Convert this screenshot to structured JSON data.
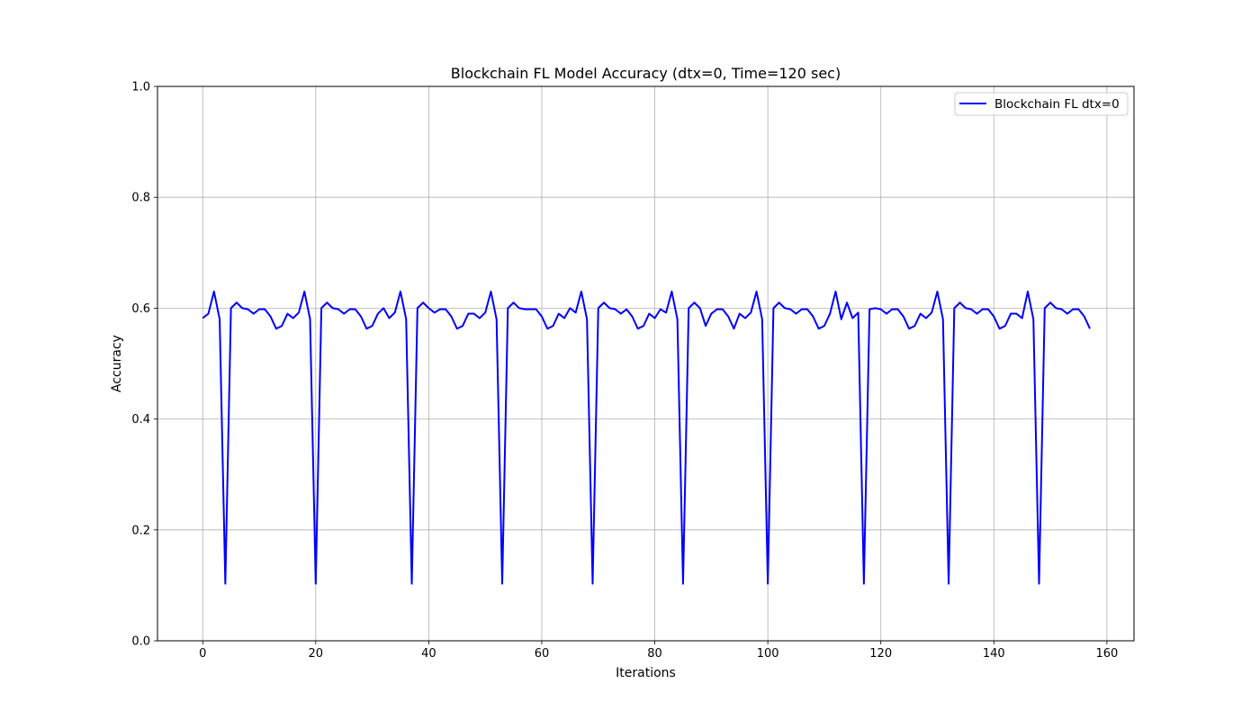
{
  "chart_data": {
    "type": "line",
    "title": "Blockchain FL Model Accuracy (dtx=0, Time=120 sec)",
    "xlabel": "Iterations",
    "ylabel": "Accuracy",
    "xlim": [
      -8,
      164.8
    ],
    "ylim": [
      0.0,
      1.0
    ],
    "xticks": [
      0,
      20,
      40,
      60,
      80,
      100,
      120,
      140,
      160
    ],
    "yticks": [
      0.0,
      0.2,
      0.4,
      0.6,
      0.8,
      1.0
    ],
    "xtick_labels": [
      "0",
      "20",
      "40",
      "60",
      "80",
      "100",
      "120",
      "140",
      "160"
    ],
    "ytick_labels": [
      "0.0",
      "0.2",
      "0.4",
      "0.6",
      "0.8",
      "1.0"
    ],
    "grid": true,
    "legend_position": "upper right",
    "series": [
      {
        "name": "Blockchain FL dtx=0",
        "color": "#0000ff",
        "x": [
          0,
          1,
          2,
          3,
          4,
          5,
          6,
          7,
          8,
          9,
          10,
          11,
          12,
          13,
          14,
          15,
          16,
          17,
          18,
          19,
          20,
          21,
          22,
          23,
          24,
          25,
          26,
          27,
          28,
          29,
          30,
          31,
          32,
          33,
          34,
          35,
          36,
          37,
          38,
          39,
          40,
          41,
          42,
          43,
          44,
          45,
          46,
          47,
          48,
          49,
          50,
          51,
          52,
          53,
          54,
          55,
          56,
          57,
          58,
          59,
          60,
          61,
          62,
          63,
          64,
          65,
          66,
          67,
          68,
          69,
          70,
          71,
          72,
          73,
          74,
          75,
          76,
          77,
          78,
          79,
          80,
          81,
          82,
          83,
          84,
          85,
          86,
          87,
          88,
          89,
          90,
          91,
          92,
          93,
          94,
          95,
          96,
          97,
          98,
          99,
          100,
          101,
          102,
          103,
          104,
          105,
          106,
          107,
          108,
          109,
          110,
          111,
          112,
          113,
          114,
          115,
          116,
          117,
          118,
          119,
          120,
          121,
          122,
          123,
          124,
          125,
          126,
          127,
          128,
          129,
          130,
          131,
          132,
          133,
          134,
          135,
          136,
          137,
          138,
          139,
          140,
          141,
          142,
          143,
          144,
          145,
          146,
          147,
          148,
          149,
          150,
          151,
          152,
          153,
          154,
          155,
          156,
          157
        ],
        "y": [
          0.582,
          0.59,
          0.63,
          0.58,
          0.103,
          0.6,
          0.61,
          0.6,
          0.598,
          0.59,
          0.598,
          0.598,
          0.585,
          0.563,
          0.568,
          0.59,
          0.582,
          0.592,
          0.63,
          0.58,
          0.103,
          0.6,
          0.61,
          0.6,
          0.598,
          0.59,
          0.598,
          0.598,
          0.585,
          0.563,
          0.568,
          0.59,
          0.6,
          0.582,
          0.592,
          0.63,
          0.58,
          0.103,
          0.6,
          0.61,
          0.6,
          0.592,
          0.598,
          0.598,
          0.585,
          0.563,
          0.568,
          0.59,
          0.59,
          0.582,
          0.592,
          0.63,
          0.58,
          0.103,
          0.6,
          0.61,
          0.6,
          0.598,
          0.598,
          0.598,
          0.585,
          0.563,
          0.568,
          0.59,
          0.582,
          0.6,
          0.592,
          0.63,
          0.58,
          0.103,
          0.6,
          0.61,
          0.6,
          0.598,
          0.59,
          0.598,
          0.585,
          0.563,
          0.568,
          0.59,
          0.582,
          0.598,
          0.592,
          0.63,
          0.58,
          0.103,
          0.6,
          0.61,
          0.6,
          0.568,
          0.59,
          0.598,
          0.598,
          0.585,
          0.563,
          0.59,
          0.582,
          0.592,
          0.63,
          0.58,
          0.103,
          0.6,
          0.61,
          0.6,
          0.598,
          0.59,
          0.598,
          0.598,
          0.585,
          0.563,
          0.568,
          0.59,
          0.63,
          0.58,
          0.61,
          0.582,
          0.592,
          0.103,
          0.598,
          0.6,
          0.598,
          0.59,
          0.598,
          0.598,
          0.585,
          0.563,
          0.568,
          0.59,
          0.582,
          0.592,
          0.63,
          0.58,
          0.103,
          0.6,
          0.61,
          0.6,
          0.598,
          0.59,
          0.598,
          0.598,
          0.585,
          0.563,
          0.568,
          0.59,
          0.59,
          0.582,
          0.63,
          0.58,
          0.103,
          0.6,
          0.61,
          0.6,
          0.598,
          0.59,
          0.598,
          0.598,
          0.585,
          0.563
        ]
      }
    ]
  }
}
